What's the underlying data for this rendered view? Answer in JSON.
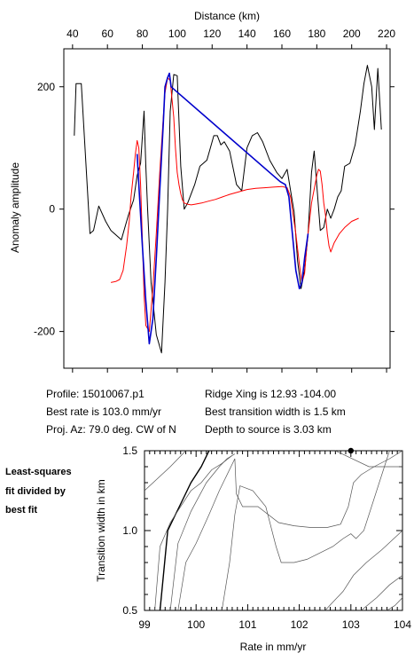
{
  "chart_data": [
    {
      "type": "line",
      "xlabel": "Distance (km)",
      "ylabel": "Anomaly amplitude",
      "xlim": [
        35,
        222
      ],
      "ylim": [
        -260,
        262
      ],
      "xticks": [
        40,
        60,
        80,
        100,
        120,
        140,
        160,
        180,
        200,
        220
      ],
      "yticks": [
        200,
        0,
        -200
      ],
      "grid": false,
      "series": [
        {
          "color": "#000000",
          "x": [
            41,
            42,
            45,
            50,
            52,
            55,
            59,
            62,
            68,
            72,
            75,
            77,
            79,
            81,
            82,
            83,
            85,
            88,
            91,
            93,
            94.5,
            96,
            98,
            100,
            102,
            104,
            106,
            110,
            113,
            117,
            119,
            121,
            123,
            125,
            127,
            130,
            134,
            137,
            140,
            143,
            146,
            149,
            153,
            157,
            160,
            163,
            165,
            167,
            169,
            171,
            173,
            175,
            177,
            178.5,
            180,
            182,
            184,
            186,
            188,
            190,
            192,
            194,
            196,
            199,
            202,
            205,
            207,
            209,
            211.5,
            213,
            215,
            217
          ],
          "y": [
            120,
            205,
            205,
            -40,
            -35,
            5,
            -20,
            -35,
            -50,
            -10,
            15,
            55,
            75,
            160,
            70,
            0,
            -120,
            -205,
            -235,
            -120,
            0,
            160,
            220,
            218,
            70,
            0,
            10,
            40,
            70,
            80,
            100,
            120,
            120,
            105,
            110,
            95,
            40,
            30,
            100,
            120,
            125,
            110,
            80,
            60,
            50,
            65,
            30,
            -5,
            -85,
            -130,
            -100,
            -40,
            60,
            95,
            40,
            -35,
            -30,
            0,
            -15,
            0,
            20,
            30,
            70,
            75,
            105,
            160,
            205,
            235,
            200,
            130,
            230,
            130
          ]
        },
        {
          "color": "#ff0000",
          "x": [
            62,
            65,
            67,
            69,
            71,
            72.5,
            73.5,
            75,
            76,
            77,
            78,
            79,
            80,
            81,
            82,
            84,
            86,
            88,
            90,
            92,
            93,
            94.5,
            96,
            98,
            99,
            100,
            101,
            102,
            103,
            104,
            106,
            108,
            110,
            114,
            118,
            122,
            126,
            130,
            135,
            140,
            145,
            150,
            155,
            160,
            163,
            165,
            168,
            170,
            171.5,
            173,
            174,
            175,
            176,
            177,
            178,
            179,
            180,
            181,
            182,
            183,
            184,
            185,
            186,
            187,
            188,
            190,
            193,
            196,
            200,
            204
          ],
          "y": [
            -120,
            -118,
            -115,
            -100,
            -60,
            -20,
            20,
            60,
            90,
            112,
            100,
            40,
            -50,
            -140,
            -190,
            -200,
            -130,
            -40,
            60,
            150,
            190,
            215,
            210,
            150,
            100,
            60,
            40,
            25,
            15,
            10,
            8,
            7,
            8,
            10,
            13,
            16,
            20,
            24,
            28,
            32,
            34,
            35,
            36,
            37,
            35,
            20,
            -40,
            -90,
            -120,
            -105,
            -70,
            -40,
            -15,
            10,
            25,
            40,
            55,
            65,
            62,
            40,
            10,
            -10,
            -40,
            -60,
            -70,
            -55,
            -40,
            -30,
            -20,
            -15
          ]
        },
        {
          "color": "#0000cc",
          "x": [
            77,
            78,
            80,
            82,
            84,
            86,
            88,
            90,
            92,
            93,
            94.5,
            95.5,
            96.5,
            159,
            162,
            164,
            166,
            168,
            170,
            171.5,
            173,
            175
          ],
          "y": [
            90,
            40,
            -60,
            -150,
            -220,
            -180,
            -80,
            30,
            140,
            200,
            215,
            222,
            200,
            45,
            40,
            20,
            -40,
            -100,
            -130,
            -120,
            -80,
            -40
          ]
        }
      ],
      "info": [
        "Profile: 15010067.p1",
        "Best rate is 103.0 mm/yr",
        "Proj. Az: 79.0 deg. CW of N",
        "Ridge Xing is 12.93 -104.00",
        "Best transition width is 1.5 km",
        "Depth to source is   3.03 km"
      ]
    },
    {
      "type": "contour",
      "xlabel": "Rate in mm/yr",
      "ylabel": "Transition width in km",
      "xlim": [
        99,
        104
      ],
      "ylim": [
        0.5,
        1.5
      ],
      "xticks": [
        99,
        100,
        101,
        102,
        103,
        104
      ],
      "yticks": [
        1.5,
        1.0,
        0.5
      ],
      "side_label": [
        "Least-squares",
        "fit divided by",
        "best fit"
      ],
      "best_fit": {
        "x": 103.0,
        "y": 1.5
      },
      "contours": [
        {
          "weight": "bold",
          "x": [
            99.3,
            99.45,
            99.6,
            99.75,
            99.9,
            100.1,
            100.25
          ],
          "y": [
            0.5,
            1.0,
            1.1,
            1.2,
            1.3,
            1.4,
            1.5
          ]
        },
        {
          "weight": "thin",
          "x": [
            99,
            99.5,
            99.8
          ],
          "y": [
            1.25,
            1.4,
            1.5
          ]
        },
        {
          "weight": "thin",
          "x": [
            99.2,
            99.3,
            99.5,
            99.7,
            99.9,
            100.1,
            100.3,
            100.5,
            100.7
          ],
          "y": [
            0.5,
            0.9,
            1.05,
            1.15,
            1.25,
            1.3,
            1.38,
            1.42,
            1.47
          ]
        },
        {
          "weight": "thin",
          "x": [
            99.5,
            99.65,
            99.9,
            100.2,
            100.45,
            100.6,
            100.75
          ],
          "y": [
            0.5,
            0.92,
            1.12,
            1.3,
            1.4,
            1.45,
            1.48
          ]
        },
        {
          "weight": "thin",
          "x": [
            99.65,
            99.8,
            100.0,
            100.25,
            100.45,
            100.75,
            100.78,
            100.9,
            101.2,
            101.6,
            101.9,
            102.2,
            102.55,
            102.8,
            102.95,
            103.05,
            103.2,
            103.45,
            103.75,
            104.0
          ],
          "y": [
            0.5,
            0.8,
            0.92,
            1.1,
            1.25,
            1.45,
            1.23,
            1.15,
            1.15,
            1.05,
            1.03,
            1.02,
            1.02,
            1.04,
            1.15,
            1.3,
            1.35,
            1.4,
            1.45,
            1.5
          ]
        },
        {
          "weight": "thin",
          "x": [
            100.5,
            100.65,
            100.75,
            100.85,
            101.1,
            101.35,
            101.55,
            101.65,
            101.9,
            102.15,
            102.4,
            102.65,
            102.85,
            103.0,
            103.1,
            103.25,
            103.45,
            103.75
          ],
          "y": [
            0.5,
            0.8,
            1.1,
            1.28,
            1.25,
            1.15,
            0.9,
            0.8,
            0.8,
            0.82,
            0.86,
            0.9,
            0.95,
            0.98,
            0.95,
            1.0,
            1.2,
            1.5
          ]
        },
        {
          "weight": "thin",
          "x": [
            102.5,
            102.85,
            103.05,
            103.3,
            103.6,
            104.0
          ],
          "y": [
            0.5,
            0.62,
            0.72,
            0.8,
            0.88,
            1.0
          ]
        },
        {
          "weight": "thin",
          "x": [
            103.2,
            103.5,
            103.75,
            104.0
          ],
          "y": [
            0.5,
            0.58,
            0.66,
            0.72
          ]
        },
        {
          "weight": "thin",
          "x": [
            103.7,
            103.85,
            104.0
          ],
          "y": [
            0.5,
            0.53,
            0.58
          ]
        },
        {
          "weight": "thin",
          "x": [
            102.7,
            103.35,
            103.7,
            104.0
          ],
          "y": [
            1.5,
            1.4,
            1.4,
            1.4
          ]
        }
      ]
    }
  ]
}
